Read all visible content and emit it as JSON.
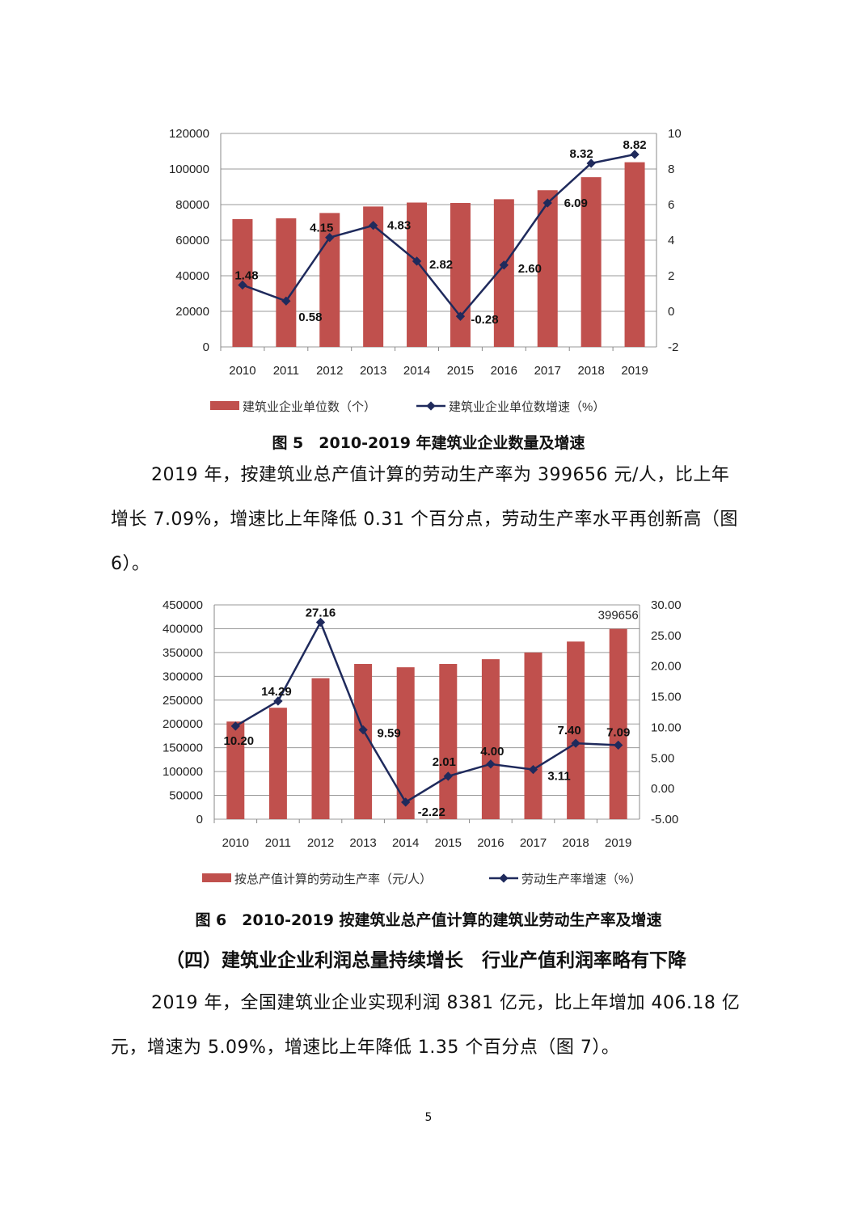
{
  "chart_data": [
    {
      "type": "bar+line",
      "categories": [
        "2010",
        "2011",
        "2012",
        "2013",
        "2014",
        "2015",
        "2016",
        "2017",
        "2018",
        "2019"
      ],
      "series": [
        {
          "name": "建筑业企业单位数（个）",
          "kind": "bar",
          "axis": "left",
          "values": [
            71863,
            72280,
            75280,
            78919,
            81141,
            80911,
            83017,
            88074,
            95400,
            103814
          ]
        },
        {
          "name": "建筑业企业单位数增速（%）",
          "kind": "line",
          "axis": "right",
          "values": [
            1.48,
            0.58,
            4.15,
            4.83,
            2.82,
            -0.28,
            2.6,
            6.09,
            8.32,
            8.82
          ],
          "labels": [
            "1.48",
            "0.58",
            "4.15",
            "4.83",
            "2.82",
            "-0.28",
            "2.60",
            "6.09",
            "8.32",
            "8.82"
          ]
        }
      ],
      "left_axis": {
        "ylim": [
          0,
          120000
        ],
        "ticks": [
          "0",
          "20000",
          "40000",
          "60000",
          "80000",
          "100000",
          "120000"
        ]
      },
      "right_axis": {
        "ylim": [
          -2,
          10
        ],
        "ticks": [
          "-2",
          "0",
          "2",
          "4",
          "6",
          "8",
          "10"
        ]
      },
      "grid": true,
      "legend": "bottom",
      "colors": {
        "bar": "#c0504d",
        "line": "#1f2a5c"
      }
    },
    {
      "type": "bar+line",
      "categories": [
        "2010",
        "2011",
        "2012",
        "2013",
        "2014",
        "2015",
        "2016",
        "2017",
        "2018",
        "2019"
      ],
      "series": [
        {
          "name": "按总产值计算的劳动生产率（元/人）",
          "kind": "bar",
          "axis": "left",
          "values": [
            205000,
            234000,
            296000,
            326000,
            319000,
            326000,
            336000,
            350000,
            373000,
            399656
          ],
          "labels": [
            "",
            "",
            "",
            "",
            "",
            "",
            "",
            "",
            "",
            "399656"
          ]
        },
        {
          "name": "劳动生产率增速（%）",
          "kind": "line",
          "axis": "right",
          "values": [
            10.2,
            14.29,
            27.16,
            9.59,
            -2.22,
            2.01,
            4.0,
            3.11,
            7.4,
            7.09
          ],
          "labels": [
            "10.20",
            "14.29",
            "27.16",
            "9.59",
            "-2.22",
            "2.01",
            "4.00",
            "3.11",
            "7.40",
            "7.09"
          ]
        }
      ],
      "left_axis": {
        "ylim": [
          0,
          450000
        ],
        "ticks": [
          "0",
          "50000",
          "100000",
          "150000",
          "200000",
          "250000",
          "300000",
          "350000",
          "400000",
          "450000"
        ]
      },
      "right_axis": {
        "ylim": [
          -5,
          30
        ],
        "ticks": [
          "-5.00",
          "0.00",
          "5.00",
          "10.00",
          "15.00",
          "20.00",
          "25.00",
          "30.00"
        ]
      },
      "grid": true,
      "legend": "bottom",
      "colors": {
        "bar": "#c0504d",
        "line": "#1f2a5c"
      }
    }
  ],
  "captions": {
    "fig5": "图 5　2010-2019 年建筑业企业数量及增速",
    "fig6": "图 6　2010-2019 按建筑业总产值计算的建筑业劳动生产率及增速"
  },
  "paragraphs": {
    "p1": "2019 年，按建筑业总产值计算的劳动生产率为 399656 元/人，比上年增长 7.09%，增速比上年降低 0.31 个百分点，劳动生产率水平再创新高（图 6）。",
    "heading": "（四）建筑业企业利润总量持续增长　行业产值利润率略有下降",
    "p2": "2019 年，全国建筑业企业实现利润 8381 亿元，比上年增加 406.18 亿元，增速为 5.09%，增速比上年降低 1.35 个百分点（图 7）。"
  },
  "page_number": "5"
}
